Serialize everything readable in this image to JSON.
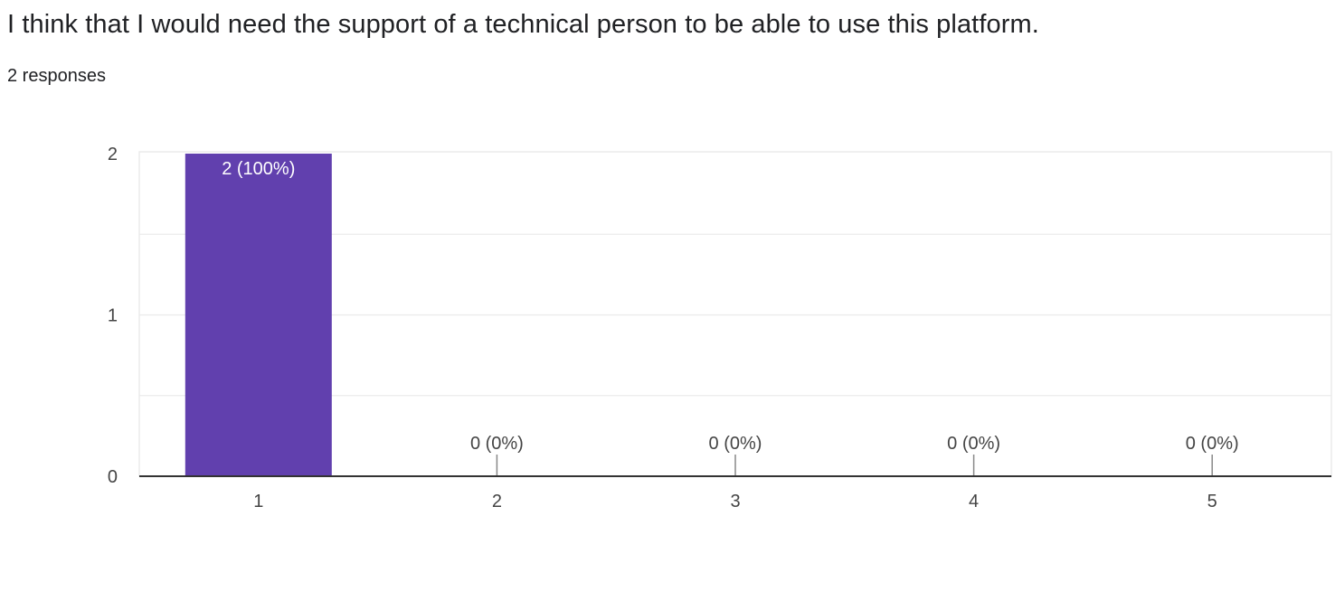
{
  "header": {
    "question": "I think that I would need the support of a technical person to be able to use this platform.",
    "responses": "2 responses"
  },
  "colors": {
    "bar": "#6140ae",
    "axis": "#333333",
    "grid": "#ebebeb",
    "label_inside": "#ffffff",
    "label_outside": "#444444",
    "tick_text": "#444444"
  },
  "chart_data": {
    "type": "bar",
    "categories": [
      "1",
      "2",
      "3",
      "4",
      "5"
    ],
    "values": [
      2,
      0,
      0,
      0,
      0
    ],
    "data_labels": [
      "2 (100%)",
      "0 (0%)",
      "0 (0%)",
      "0 (0%)",
      "0 (0%)"
    ],
    "y_ticks": [
      "0",
      "1",
      "2"
    ],
    "ylim": [
      0,
      2
    ],
    "grid": true,
    "legend": "none",
    "title": "",
    "xlabel": "",
    "ylabel": ""
  }
}
